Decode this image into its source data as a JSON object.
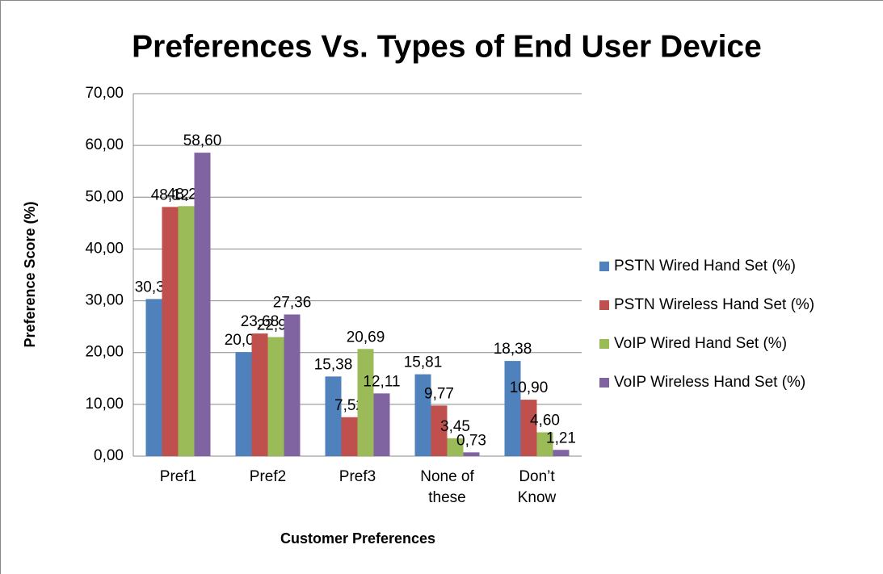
{
  "chart_data": {
    "type": "bar",
    "title": "Preferences Vs. Types of End User Device",
    "x_label": "Customer Preferences",
    "y_label": "Preference Score (%)",
    "categories": [
      "Pref1",
      "Pref2",
      "Pref3",
      "None of these",
      "Don’t Know"
    ],
    "series": [
      {
        "name": "PSTN Wired Hand Set (%)",
        "color": "#4f81bd",
        "values": [
          30.34,
          20.09,
          15.38,
          15.81,
          18.38
        ],
        "value_labels": [
          "30,34",
          "20,09",
          "15,38",
          "15,81",
          "18,38"
        ]
      },
      {
        "name": "PSTN Wireless Hand Set (%)",
        "color": "#c0504d",
        "values": [
          48.12,
          23.68,
          7.52,
          9.77,
          10.9
        ],
        "value_labels": [
          "48,12",
          "23,68",
          "7,52",
          "9,77",
          "10,90"
        ]
      },
      {
        "name": "VoIP Wired Hand Set (%)",
        "color": "#9bbb59",
        "values": [
          48.28,
          22.99,
          20.69,
          3.45,
          4.6
        ],
        "value_labels": [
          "48,28",
          "22,99",
          "20,69",
          "3,45",
          "4,60"
        ]
      },
      {
        "name": "VoIP  Wireless Hand Set (%)",
        "color": "#8064a2",
        "values": [
          58.6,
          27.36,
          12.11,
          0.73,
          1.21
        ],
        "value_labels": [
          "58,60",
          "27,36",
          "12,11",
          "0,73",
          "1,21"
        ]
      }
    ],
    "ylim": [
      0,
      70
    ],
    "yticks": [
      {
        "value": 0,
        "label": "0,00"
      },
      {
        "value": 10,
        "label": "10,00"
      },
      {
        "value": 20,
        "label": "20,00"
      },
      {
        "value": 30,
        "label": "30,00"
      },
      {
        "value": 40,
        "label": "40,00"
      },
      {
        "value": 50,
        "label": "50,00"
      },
      {
        "value": 60,
        "label": "60,00"
      },
      {
        "value": 70,
        "label": "70,00"
      }
    ],
    "grid": true,
    "legend": "right"
  }
}
